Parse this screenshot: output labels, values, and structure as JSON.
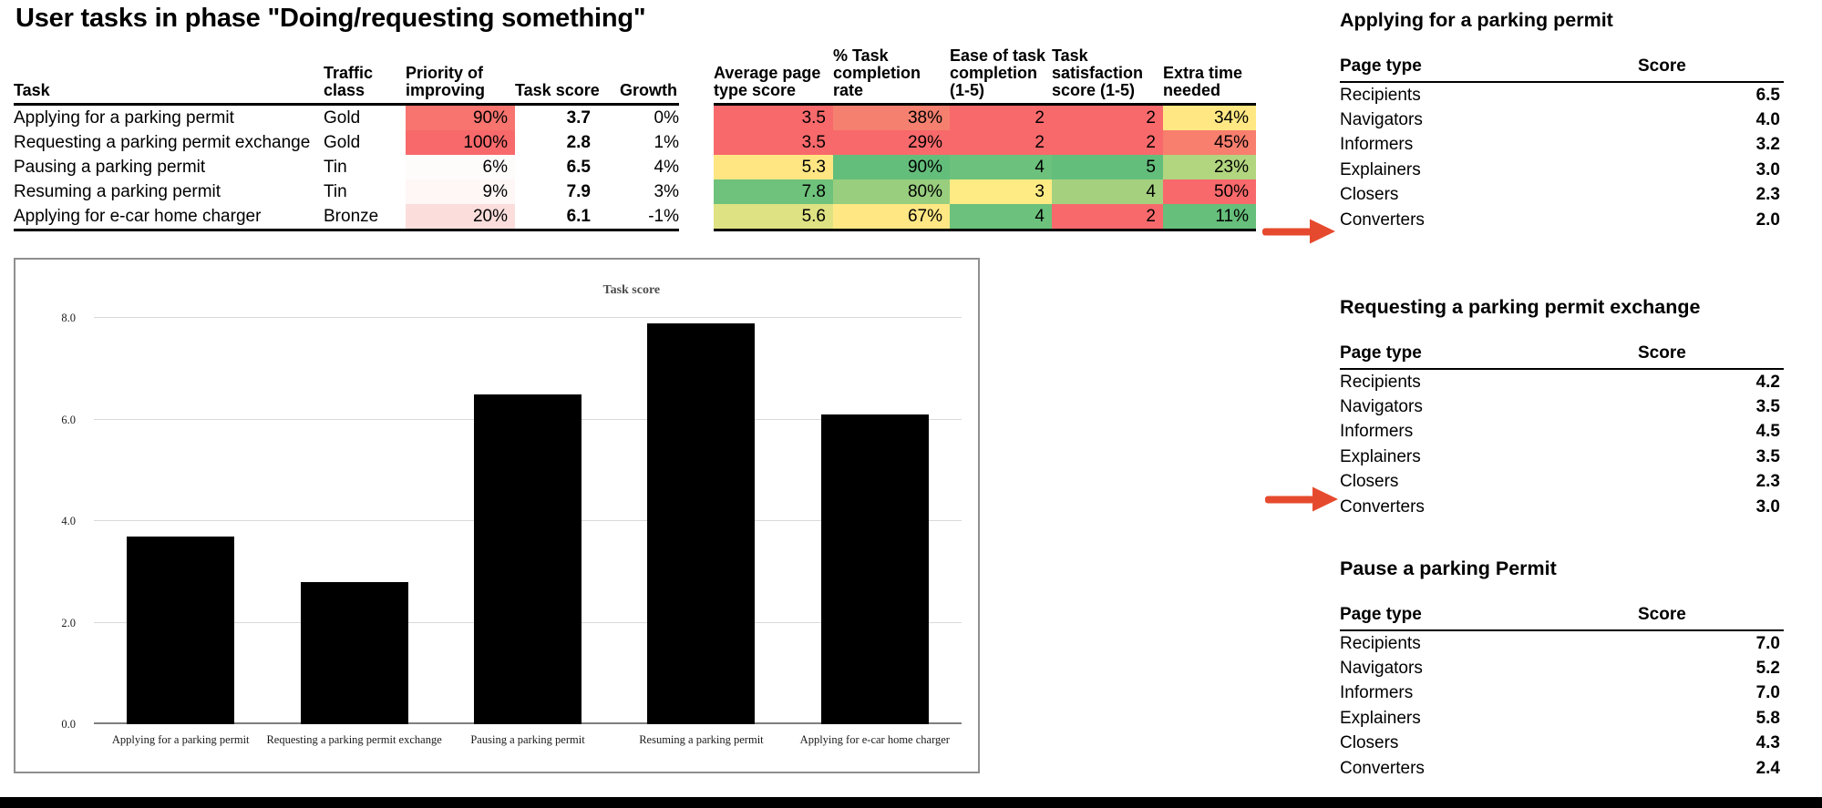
{
  "title": "User tasks in phase \"Doing/requesting something\"",
  "main_table": {
    "headers": {
      "task": "Task",
      "traffic_class": "Traffic class",
      "priority": "Priority of improving",
      "task_score": "Task score",
      "growth": "Growth",
      "avg_page_score": "Average page type score",
      "completion_rate": "% Task completion rate",
      "ease": "Ease of task completion (1-5)",
      "satisfaction": "Task satisfaction score (1-5)",
      "extra_time": "Extra time needed"
    },
    "rows": [
      {
        "task": "Applying for a parking permit",
        "traffic_class": "Gold",
        "priority": {
          "text": "90%",
          "bg": "#F8746F"
        },
        "task_score": "3.7",
        "growth": "0%",
        "metrics": [
          {
            "text": "3.5",
            "bg": "#F8696B"
          },
          {
            "text": "38%",
            "bg": "#F5806F"
          },
          {
            "text": "2",
            "bg": "#F8696B"
          },
          {
            "text": "2",
            "bg": "#F8696B"
          },
          {
            "text": "34%",
            "bg": "#FFE883"
          }
        ]
      },
      {
        "task": "Requesting a parking permit exchange",
        "traffic_class": "Gold",
        "priority": {
          "text": "100%",
          "bg": "#F8696B"
        },
        "task_score": "2.8",
        "growth": "1%",
        "metrics": [
          {
            "text": "3.5",
            "bg": "#F8696B"
          },
          {
            "text": "29%",
            "bg": "#F8696B"
          },
          {
            "text": "2",
            "bg": "#F8696B"
          },
          {
            "text": "2",
            "bg": "#F8696B"
          },
          {
            "text": "45%",
            "bg": "#F87E6E"
          }
        ]
      },
      {
        "task": "Pausing a parking permit",
        "traffic_class": "Tin",
        "priority": {
          "text": "6%",
          "bg": "#FEFBFB"
        },
        "task_score": "6.5",
        "growth": "4%",
        "metrics": [
          {
            "text": "5.3",
            "bg": "#FFE683"
          },
          {
            "text": "90%",
            "bg": "#63BE7B"
          },
          {
            "text": "4",
            "bg": "#6CC17C"
          },
          {
            "text": "5",
            "bg": "#63BE7B"
          },
          {
            "text": "23%",
            "bg": "#B2D57F"
          }
        ]
      },
      {
        "task": "Resuming a parking permit",
        "traffic_class": "Tin",
        "priority": {
          "text": "9%",
          "bg": "#FEF7F6"
        },
        "task_score": "7.9",
        "growth": "3%",
        "metrics": [
          {
            "text": "7.8",
            "bg": "#6EC27C"
          },
          {
            "text": "80%",
            "bg": "#98CE7E"
          },
          {
            "text": "3",
            "bg": "#FFEB84"
          },
          {
            "text": "4",
            "bg": "#A5D17F"
          },
          {
            "text": "50%",
            "bg": "#F8696B"
          }
        ]
      },
      {
        "task": "Applying for  e-car home charger",
        "traffic_class": "Bronze",
        "priority": {
          "text": "20%",
          "bg": "#FBDEDC"
        },
        "task_score": "6.1",
        "growth": "-1%",
        "metrics": [
          {
            "text": "5.6",
            "bg": "#DFE282"
          },
          {
            "text": "67%",
            "bg": "#FFE884"
          },
          {
            "text": "4",
            "bg": "#6CC17C"
          },
          {
            "text": "2",
            "bg": "#F8696B"
          },
          {
            "text": "11%",
            "bg": "#66BF7B"
          }
        ]
      }
    ]
  },
  "chart_data": {
    "type": "bar",
    "title": "Task score",
    "categories": [
      "Applying for a parking permit",
      "Requesting a parking permit exchange",
      "Pausing a parking permit",
      "Resuming a parking permit",
      "Applying for  e-car home charger"
    ],
    "values": [
      3.7,
      2.8,
      6.5,
      7.9,
      6.1
    ],
    "xlabel": "",
    "ylabel": "",
    "ylim": [
      0,
      8
    ],
    "yticks": [
      0,
      2,
      4,
      6,
      8
    ],
    "grid": true,
    "legend": false,
    "bar_color": "#000000"
  },
  "side_tables": [
    {
      "title": "Applying for a parking permit",
      "col_page": "Page type",
      "col_score": "Score",
      "rows": [
        [
          "Recipients",
          "6.5"
        ],
        [
          "Navigators",
          "4.0"
        ],
        [
          "Informers",
          "3.2"
        ],
        [
          "Explainers",
          "3.0"
        ],
        [
          "Closers",
          "2.3"
        ],
        [
          "Converters",
          "2.0"
        ]
      ]
    },
    {
      "title": "Requesting a parking permit exchange",
      "col_page": "Page type",
      "col_score": "Score",
      "rows": [
        [
          "Recipients",
          "4.2"
        ],
        [
          "Navigators",
          "3.5"
        ],
        [
          "Informers",
          "4.5"
        ],
        [
          "Explainers",
          "3.5"
        ],
        [
          "Closers",
          "2.3"
        ],
        [
          "Converters",
          "3.0"
        ]
      ]
    },
    {
      "title": "Pause a parking Permit",
      "col_page": "Page type",
      "col_score": "Score",
      "rows": [
        [
          "Recipients",
          "7.0"
        ],
        [
          "Navigators",
          "5.2"
        ],
        [
          "Informers",
          "7.0"
        ],
        [
          "Explainers",
          "5.8"
        ],
        [
          "Closers",
          "4.3"
        ],
        [
          "Converters",
          "2.4"
        ]
      ]
    }
  ],
  "annotations": {
    "arrow_color": "#E64A2E"
  }
}
